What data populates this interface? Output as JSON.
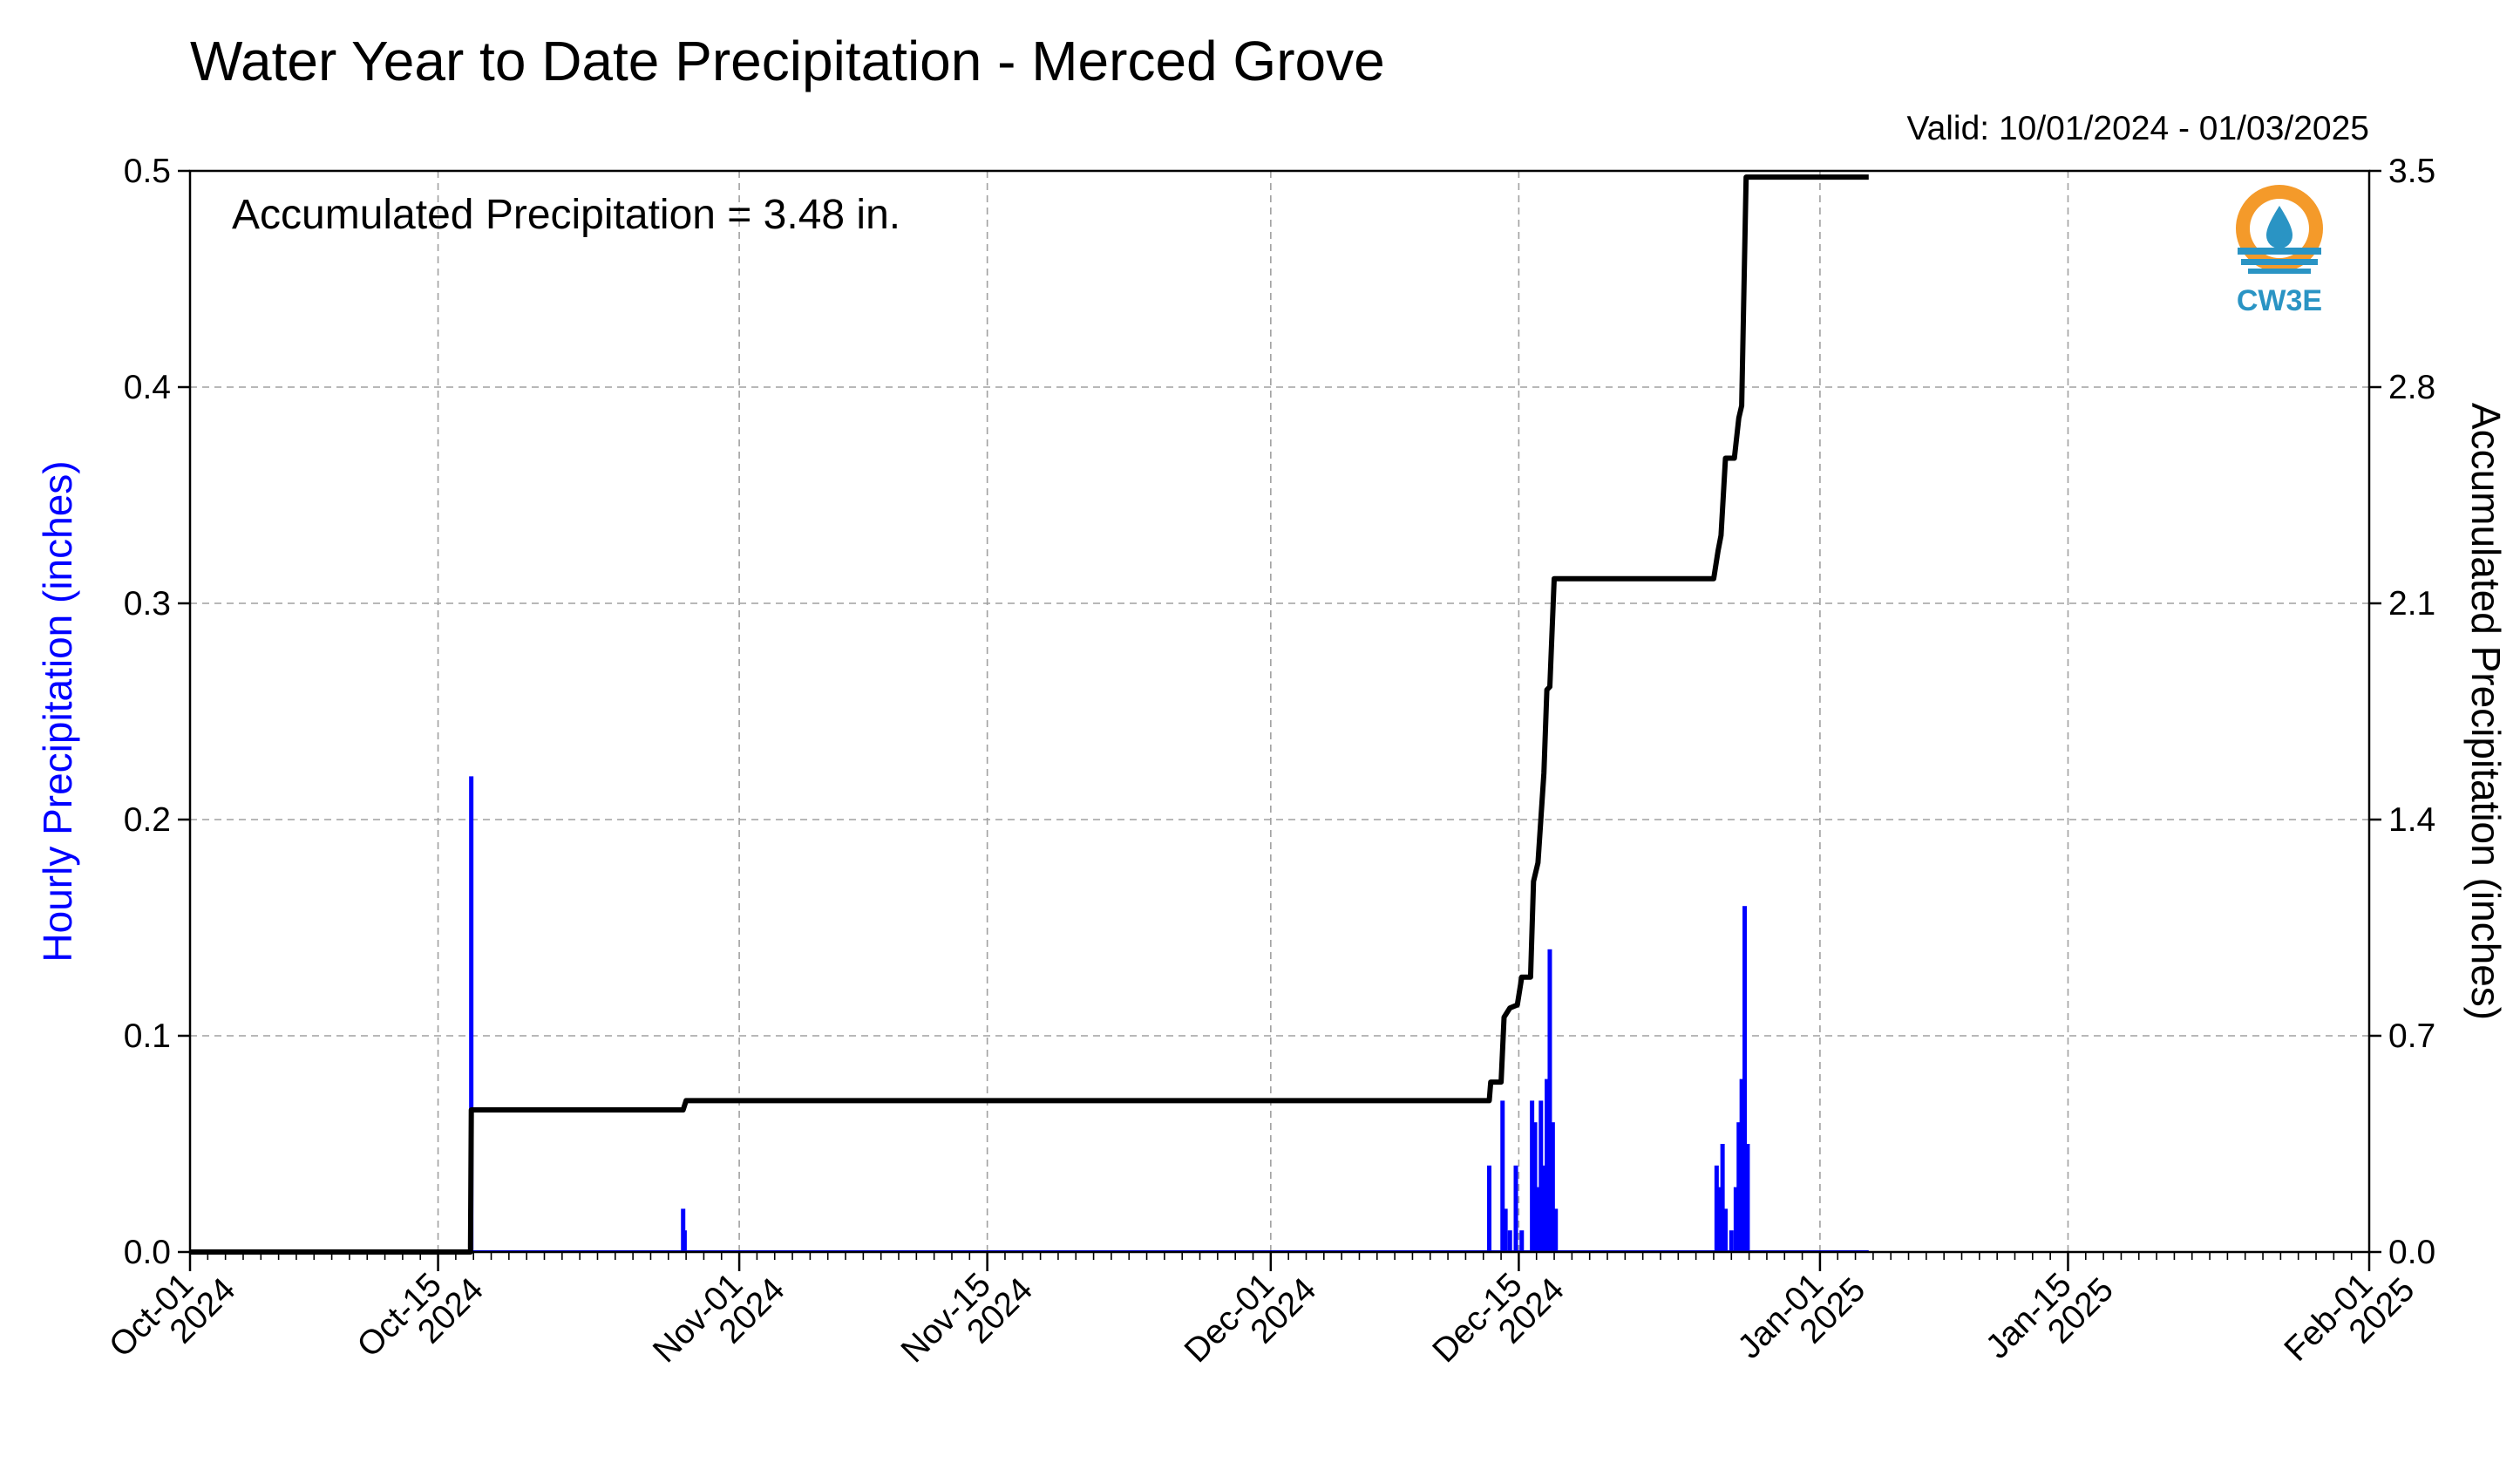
{
  "chart_data": {
    "type": "bar+line",
    "title": "Water Year to Date Precipitation - Merced Grove",
    "valid_label": "Valid: 10/01/2024 - 01/03/2025",
    "annotation": "Accumulated Precipitation = 3.48 in.",
    "logo_text": "CW3E",
    "left_axis": {
      "label": "Hourly Precipitation (inches)",
      "range": [
        0,
        0.5
      ],
      "ticks": [
        "0.0",
        "0.1",
        "0.2",
        "0.3",
        "0.4",
        "0.5"
      ],
      "color": "#0000ff"
    },
    "right_axis": {
      "label": "Accumulated Precipitation (inches)",
      "range": [
        0,
        3.5
      ],
      "ticks": [
        "0.0",
        "0.7",
        "1.4",
        "2.1",
        "2.8",
        "3.5"
      ]
    },
    "x_axis": {
      "range": [
        "2024-10-01",
        "2025-02-01"
      ],
      "ticks": [
        {
          "date": "2024-10-01",
          "line1": "Oct-01",
          "line2": "2024"
        },
        {
          "date": "2024-10-15",
          "line1": "Oct-15",
          "line2": "2024"
        },
        {
          "date": "2024-11-01",
          "line1": "Nov-01",
          "line2": "2024"
        },
        {
          "date": "2024-11-15",
          "line1": "Nov-15",
          "line2": "2024"
        },
        {
          "date": "2024-12-01",
          "line1": "Dec-01",
          "line2": "2024"
        },
        {
          "date": "2024-12-15",
          "line1": "Dec-15",
          "line2": "2024"
        },
        {
          "date": "2025-01-01",
          "line1": "Jan-01",
          "line2": "2025"
        },
        {
          "date": "2025-01-15",
          "line1": "Jan-15",
          "line2": "2025"
        },
        {
          "date": "2025-02-01",
          "line1": "Feb-01",
          "line2": "2025"
        }
      ]
    },
    "grid": true,
    "series": [
      {
        "kind": "bar",
        "axis": "left",
        "color": "#0000ff",
        "points": [
          [
            "2024-10-16T20:00",
            0.02
          ],
          [
            "2024-10-16T21:00",
            0.22
          ],
          [
            "2024-10-28T20:00",
            0.02
          ],
          [
            "2024-10-28T22:00",
            0.01
          ],
          [
            "2024-12-13T08:00",
            0.04
          ],
          [
            "2024-12-14T02:00",
            0.07
          ],
          [
            "2024-12-14T06:00",
            0.02
          ],
          [
            "2024-12-14T12:00",
            0.01
          ],
          [
            "2024-12-14T20:00",
            0.04
          ],
          [
            "2024-12-15T04:00",
            0.01
          ],
          [
            "2024-12-15T18:00",
            0.07
          ],
          [
            "2024-12-15T22:00",
            0.06
          ],
          [
            "2024-12-16T02:00",
            0.03
          ],
          [
            "2024-12-16T06:00",
            0.07
          ],
          [
            "2024-12-16T10:00",
            0.04
          ],
          [
            "2024-12-16T14:00",
            0.08
          ],
          [
            "2024-12-16T18:00",
            0.14
          ],
          [
            "2024-12-16T22:00",
            0.06
          ],
          [
            "2024-12-17T02:00",
            0.02
          ],
          [
            "2024-12-26T04:00",
            0.04
          ],
          [
            "2024-12-26T08:00",
            0.03
          ],
          [
            "2024-12-26T12:00",
            0.05
          ],
          [
            "2024-12-26T16:00",
            0.02
          ],
          [
            "2024-12-27T00:00",
            0.01
          ],
          [
            "2024-12-27T06:00",
            0.03
          ],
          [
            "2024-12-27T10:00",
            0.06
          ],
          [
            "2024-12-27T14:00",
            0.08
          ],
          [
            "2024-12-27T18:00",
            0.16
          ],
          [
            "2024-12-27T22:00",
            0.05
          ]
        ]
      },
      {
        "kind": "line",
        "axis": "right",
        "name": "Accumulated Precipitation",
        "color": "#000000",
        "points": [
          [
            "2024-10-01T00:00",
            0.0
          ],
          [
            "2024-10-16T20:00",
            0.0
          ],
          [
            "2024-10-16T20:00",
            0.02
          ],
          [
            "2024-10-16T21:00",
            0.46
          ],
          [
            "2024-10-28T20:00",
            0.46
          ],
          [
            "2024-10-29T00:00",
            0.49
          ],
          [
            "2024-12-13T08:00",
            0.49
          ],
          [
            "2024-12-13T10:00",
            0.55
          ],
          [
            "2024-12-14T00:00",
            0.55
          ],
          [
            "2024-12-14T04:00",
            0.76
          ],
          [
            "2024-12-14T12:00",
            0.79
          ],
          [
            "2024-12-14T22:00",
            0.8
          ],
          [
            "2024-12-15T04:00",
            0.89
          ],
          [
            "2024-12-15T16:00",
            0.89
          ],
          [
            "2024-12-15T20:00",
            1.2
          ],
          [
            "2024-12-16T02:00",
            1.26
          ],
          [
            "2024-12-16T10:00",
            1.55
          ],
          [
            "2024-12-16T14:00",
            1.82
          ],
          [
            "2024-12-16T18:00",
            1.83
          ],
          [
            "2024-12-17T00:00",
            2.18
          ],
          [
            "2024-12-26T00:00",
            2.18
          ],
          [
            "2024-12-26T06:00",
            2.27
          ],
          [
            "2024-12-26T10:00",
            2.32
          ],
          [
            "2024-12-26T16:00",
            2.57
          ],
          [
            "2024-12-27T04:00",
            2.57
          ],
          [
            "2024-12-27T10:00",
            2.7
          ],
          [
            "2024-12-27T14:00",
            2.74
          ],
          [
            "2024-12-27T20:00",
            3.48
          ],
          [
            "2025-01-03T18:00",
            3.48
          ]
        ]
      }
    ]
  }
}
